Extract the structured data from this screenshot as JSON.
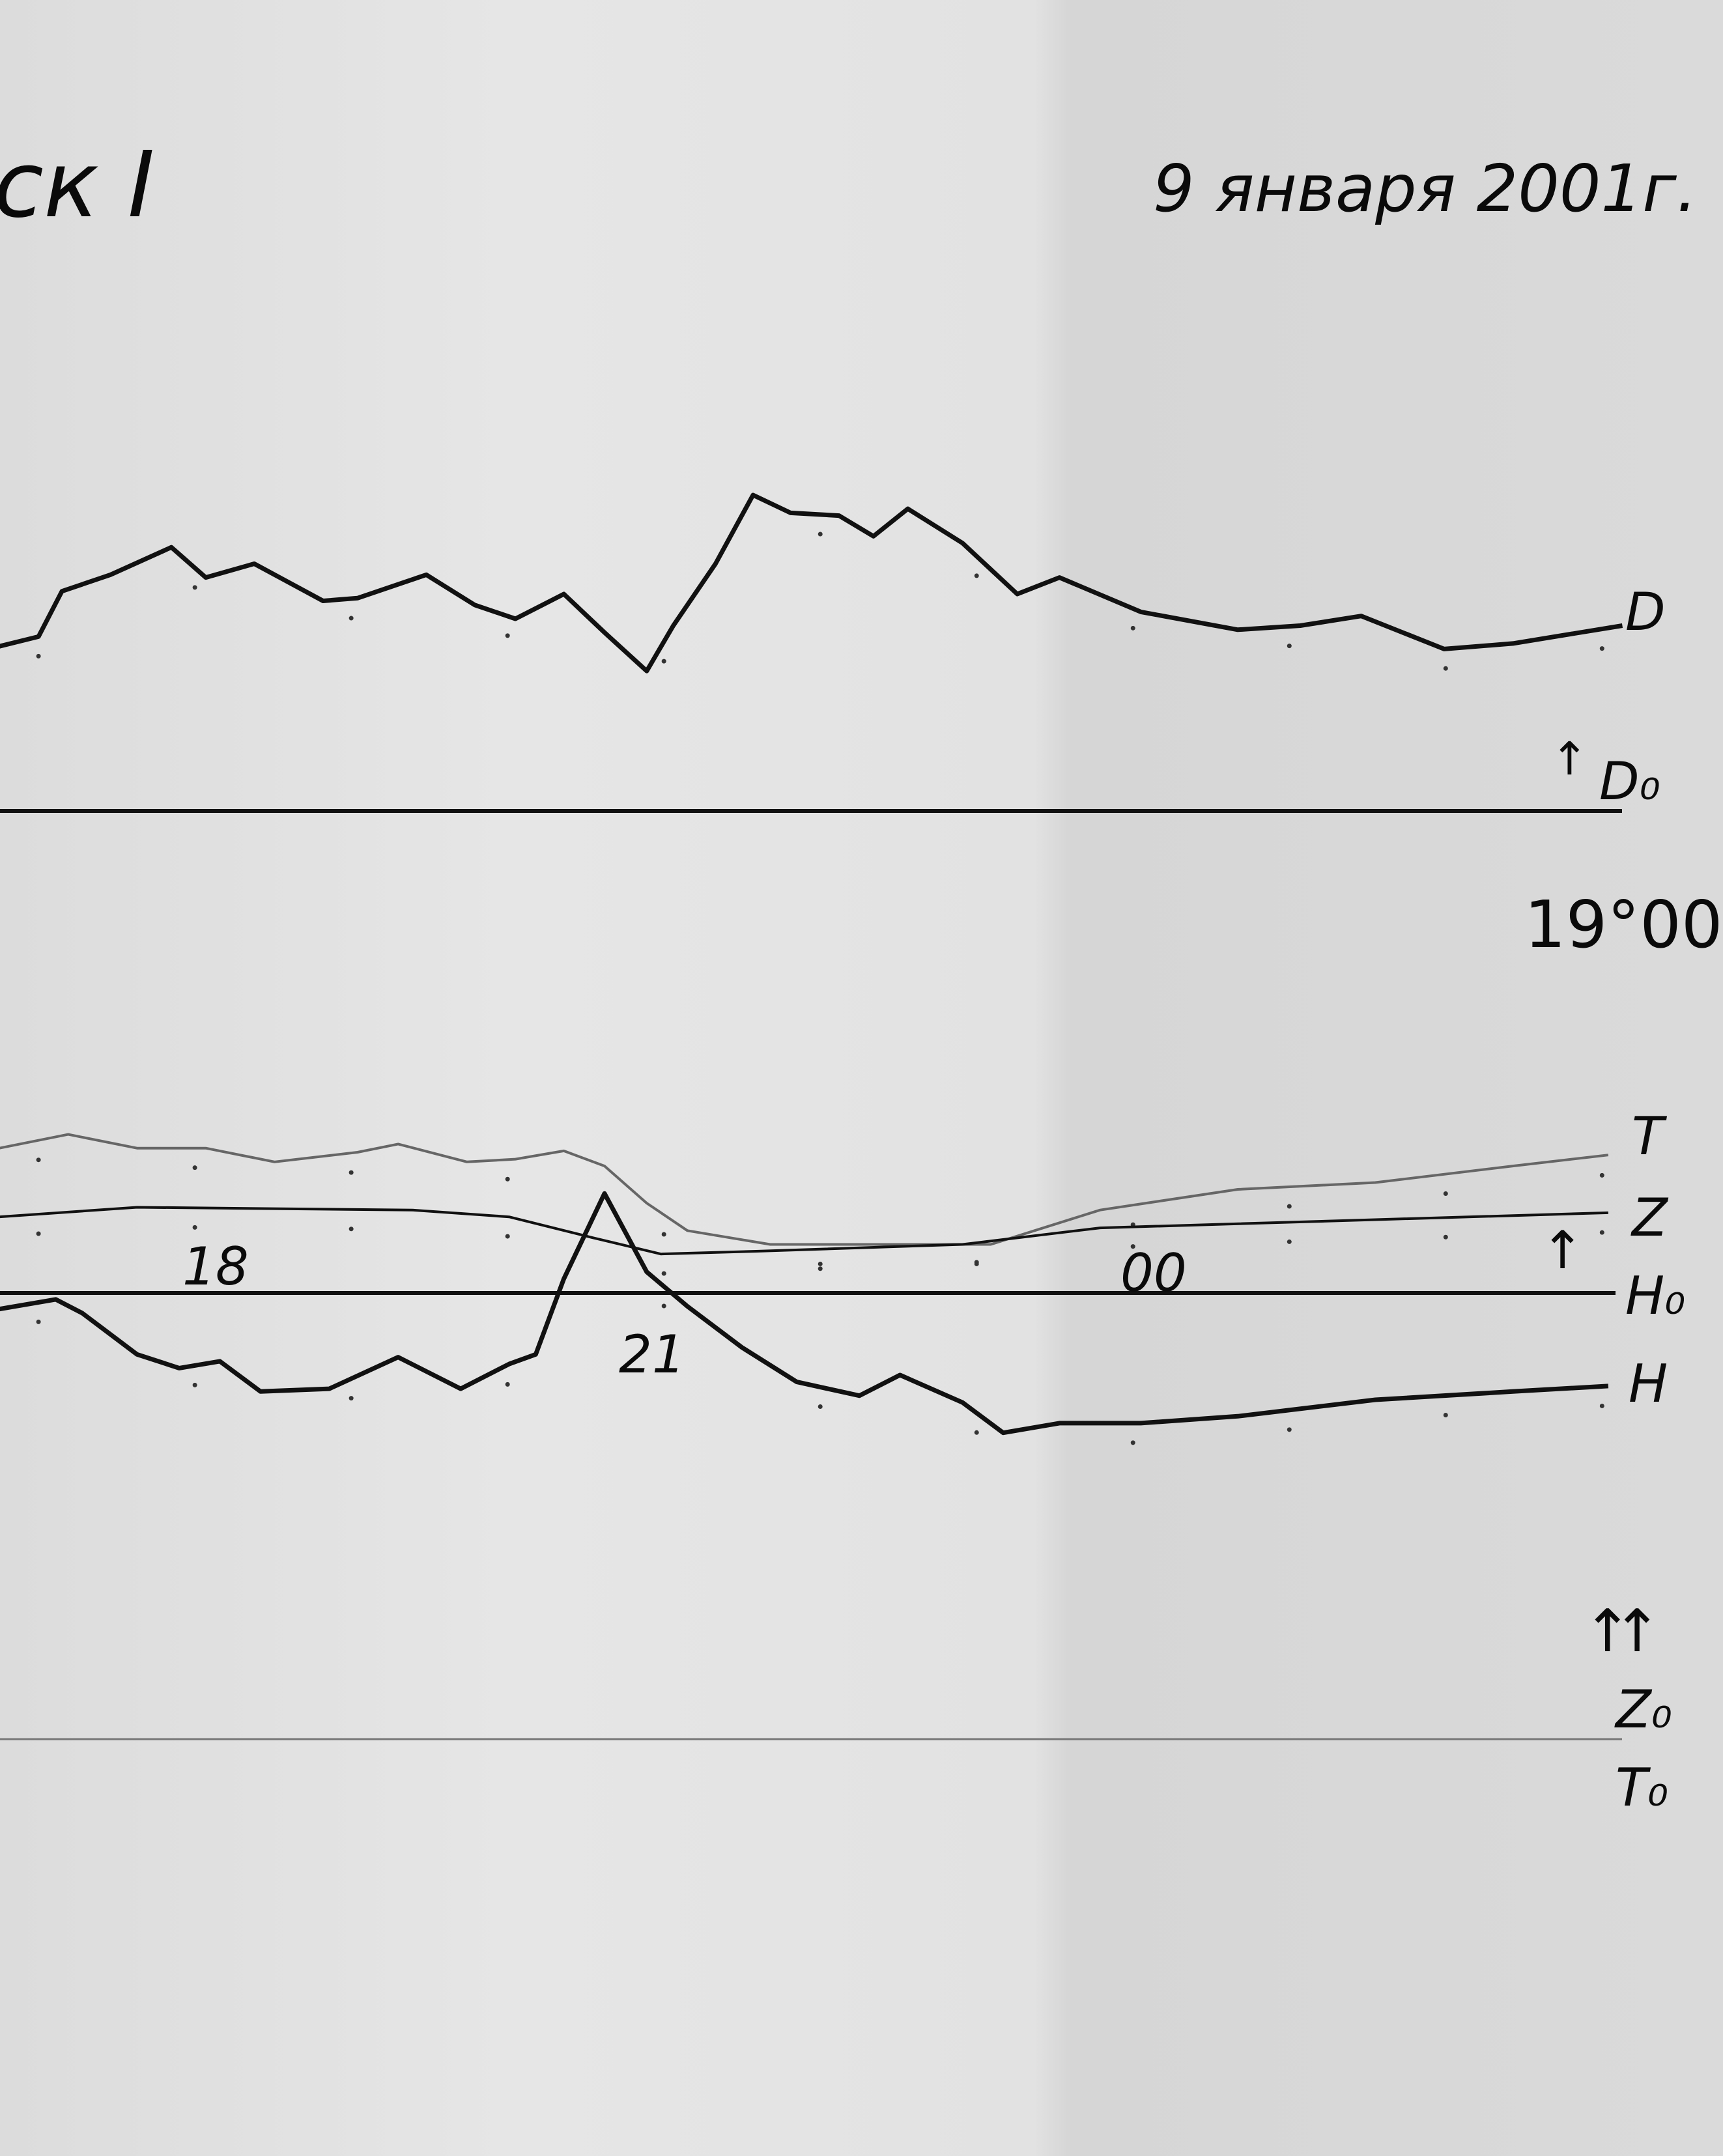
{
  "header": {
    "station": "ск I",
    "date": "9 января 2001г."
  },
  "labels": {
    "d": "D",
    "d0": "D₀",
    "d0_arrow": "↑",
    "time_mark": "19°00",
    "t": "T",
    "z": "Z",
    "h0": "H₀",
    "h": "H",
    "h0_arrow": "↑",
    "z0_t0_arrows": "↑↑",
    "z0": "Z₀",
    "t0": "T₀"
  },
  "chart_data": {
    "type": "line",
    "title": "",
    "xlabel": "",
    "ylabel": "",
    "x_tick_labels": [
      {
        "hour": 18,
        "label": "18"
      },
      {
        "hour": 21,
        "label": "21"
      },
      {
        "hour": 24,
        "label": "00"
      }
    ],
    "xlim": [
      16.75,
      27.2
    ],
    "hour_marks": [
      17,
      18,
      19,
      20,
      21,
      22,
      23,
      24,
      25,
      26,
      27
    ],
    "grid": false,
    "colors": {
      "ink": "#111111",
      "t_trace": "#666666",
      "baseline_z0": "#777777"
    },
    "series": [
      {
        "name": "D",
        "baseline": "D₀",
        "x": [
          16.75,
          17,
          17.15,
          17.46,
          17.85,
          18.07,
          18.38,
          18.82,
          19.04,
          19.48,
          19.79,
          20.05,
          20.36,
          20.62,
          20.89,
          21.06,
          21.33,
          21.57,
          21.81,
          22.12,
          22.34,
          22.56,
          22.91,
          23.26,
          23.53,
          24.05,
          24.67,
          25.07,
          25.46,
          25.99,
          26.43,
          27.13
        ],
        "y": [
          120,
          127,
          160,
          172,
          192,
          170,
          180,
          153,
          155,
          172,
          150,
          140,
          158,
          130,
          102,
          135,
          180,
          230,
          217,
          215,
          200,
          220,
          195,
          158,
          170,
          145,
          132,
          135,
          142,
          118,
          122,
          135
        ]
      },
      {
        "name": "T",
        "baseline": "T₀",
        "x": [
          16.75,
          17.19,
          17.63,
          18.07,
          18.51,
          19.04,
          19.3,
          19.74,
          20.05,
          20.36,
          20.62,
          20.89,
          21.15,
          21.68,
          22.47,
          23.09,
          23.79,
          24.67,
          25.55,
          26.43,
          27.04
        ],
        "y": [
          430,
          440,
          430,
          430,
          420,
          427,
          433,
          420,
          422,
          428,
          417,
          390,
          370,
          360,
          360,
          360,
          385,
          400,
          405,
          417,
          425
        ]
      },
      {
        "name": "Z",
        "baseline": "Z₀",
        "x": [
          16.75,
          17.63,
          19.39,
          20.01,
          20.54,
          20.98,
          21.59,
          22.91,
          23.79,
          25.55,
          27.04
        ],
        "y": [
          380,
          387,
          385,
          380,
          365,
          353,
          355,
          360,
          372,
          378,
          383
        ]
      },
      {
        "name": "H",
        "baseline": "H₀",
        "x": [
          16.75,
          17.11,
          17.28,
          17.63,
          17.9,
          18.16,
          18.42,
          18.86,
          19.3,
          19.7,
          20.01,
          20.18,
          20.36,
          20.62,
          20.89,
          21.15,
          21.5,
          21.85,
          22.25,
          22.51,
          22.91,
          23.17,
          23.53,
          24.05,
          24.67,
          25.55,
          26.43,
          27.04
        ],
        "y": [
          -12,
          -5,
          -15,
          -45,
          -55,
          -50,
          -72,
          -70,
          -47,
          -70,
          -52,
          -45,
          10,
          72,
          15,
          -10,
          -40,
          -65,
          -75,
          -60,
          -80,
          -102,
          -95,
          -95,
          -90,
          -78,
          -72,
          -68
        ]
      }
    ]
  }
}
